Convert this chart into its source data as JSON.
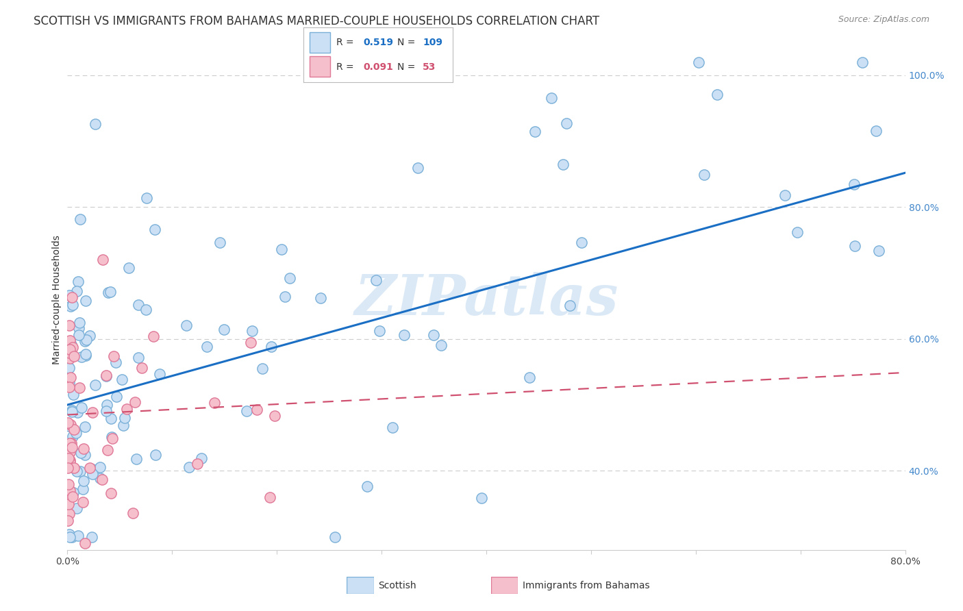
{
  "title": "SCOTTISH VS IMMIGRANTS FROM BAHAMAS MARRIED-COUPLE HOUSEHOLDS CORRELATION CHART",
  "source": "Source: ZipAtlas.com",
  "ylabel": "Married-couple Households",
  "watermark": "ZIPatlas",
  "scottish_R": 0.519,
  "scottish_N": 109,
  "bahamas_R": 0.091,
  "bahamas_N": 53,
  "scottish_face": "#cce0f5",
  "scottish_edge": "#7ab0d8",
  "scottish_line": "#1a6fc4",
  "bahamas_face": "#f5c0cc",
  "bahamas_edge": "#e07898",
  "bahamas_line": "#d05070",
  "xlim_min": 0.0,
  "xlim_max": 0.8,
  "ylim_min": 0.28,
  "ylim_max": 1.04,
  "yticks": [
    0.4,
    0.6,
    0.8,
    1.0
  ],
  "ytick_labels": [
    "40.0%",
    "60.0%",
    "80.0%",
    "100.0%"
  ],
  "xticks": [
    0.0,
    0.1,
    0.2,
    0.3,
    0.4,
    0.5,
    0.6,
    0.7,
    0.8
  ],
  "xtick_labels": [
    "0.0%",
    "",
    "",
    "",
    "",
    "",
    "",
    "",
    "80.0%"
  ],
  "grid_color": "#cccccc",
  "tick_color_right": "#4488cc",
  "title_fontsize": 12,
  "source_fontsize": 9,
  "tick_fontsize": 10,
  "marker_size": 11,
  "scottish_slope": 0.44,
  "scottish_intercept": 0.5,
  "bahamas_slope": 0.08,
  "bahamas_intercept": 0.485,
  "background_color": "#ffffff"
}
